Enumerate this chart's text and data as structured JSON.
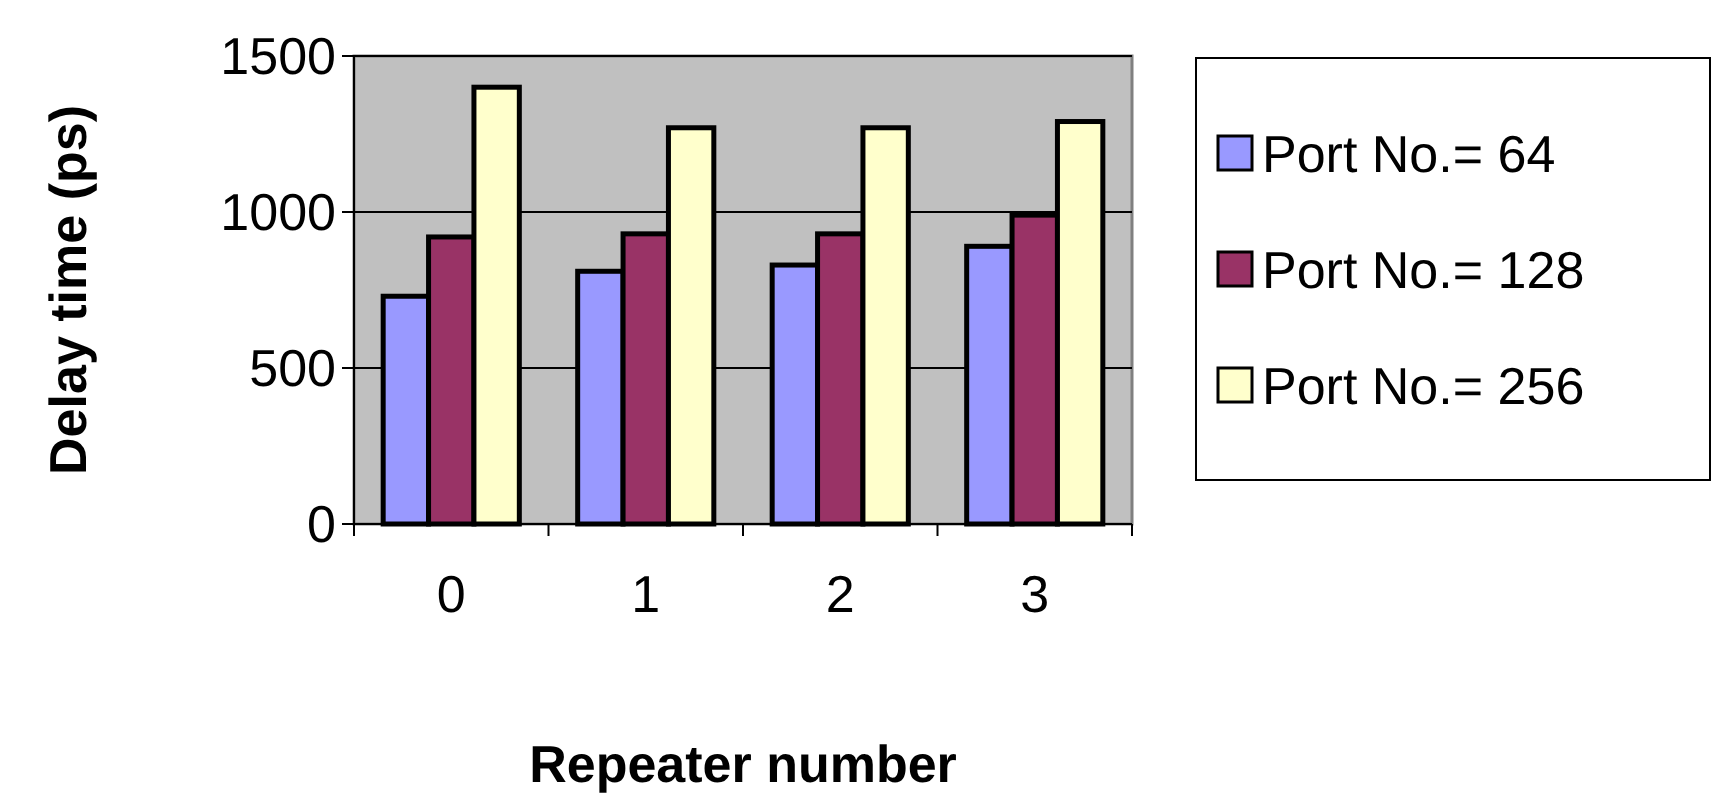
{
  "chart_data": {
    "type": "bar",
    "xlabel": "Repeater number",
    "ylabel": "Delay time (ps)",
    "categories": [
      "0",
      "1",
      "2",
      "3"
    ],
    "series": [
      {
        "name": "Port No.= 64",
        "color": "#9999ff",
        "values": [
          730,
          810,
          830,
          890
        ]
      },
      {
        "name": "Port No.= 128",
        "color": "#993366",
        "values": [
          920,
          930,
          930,
          990
        ]
      },
      {
        "name": "Port No.= 256",
        "color": "#ffffcc",
        "values": [
          1400,
          1270,
          1270,
          1290
        ]
      }
    ],
    "ylim": [
      0,
      1500
    ],
    "yticks": [
      0,
      500,
      1000,
      1500
    ],
    "grid": "y",
    "legend": "right"
  }
}
